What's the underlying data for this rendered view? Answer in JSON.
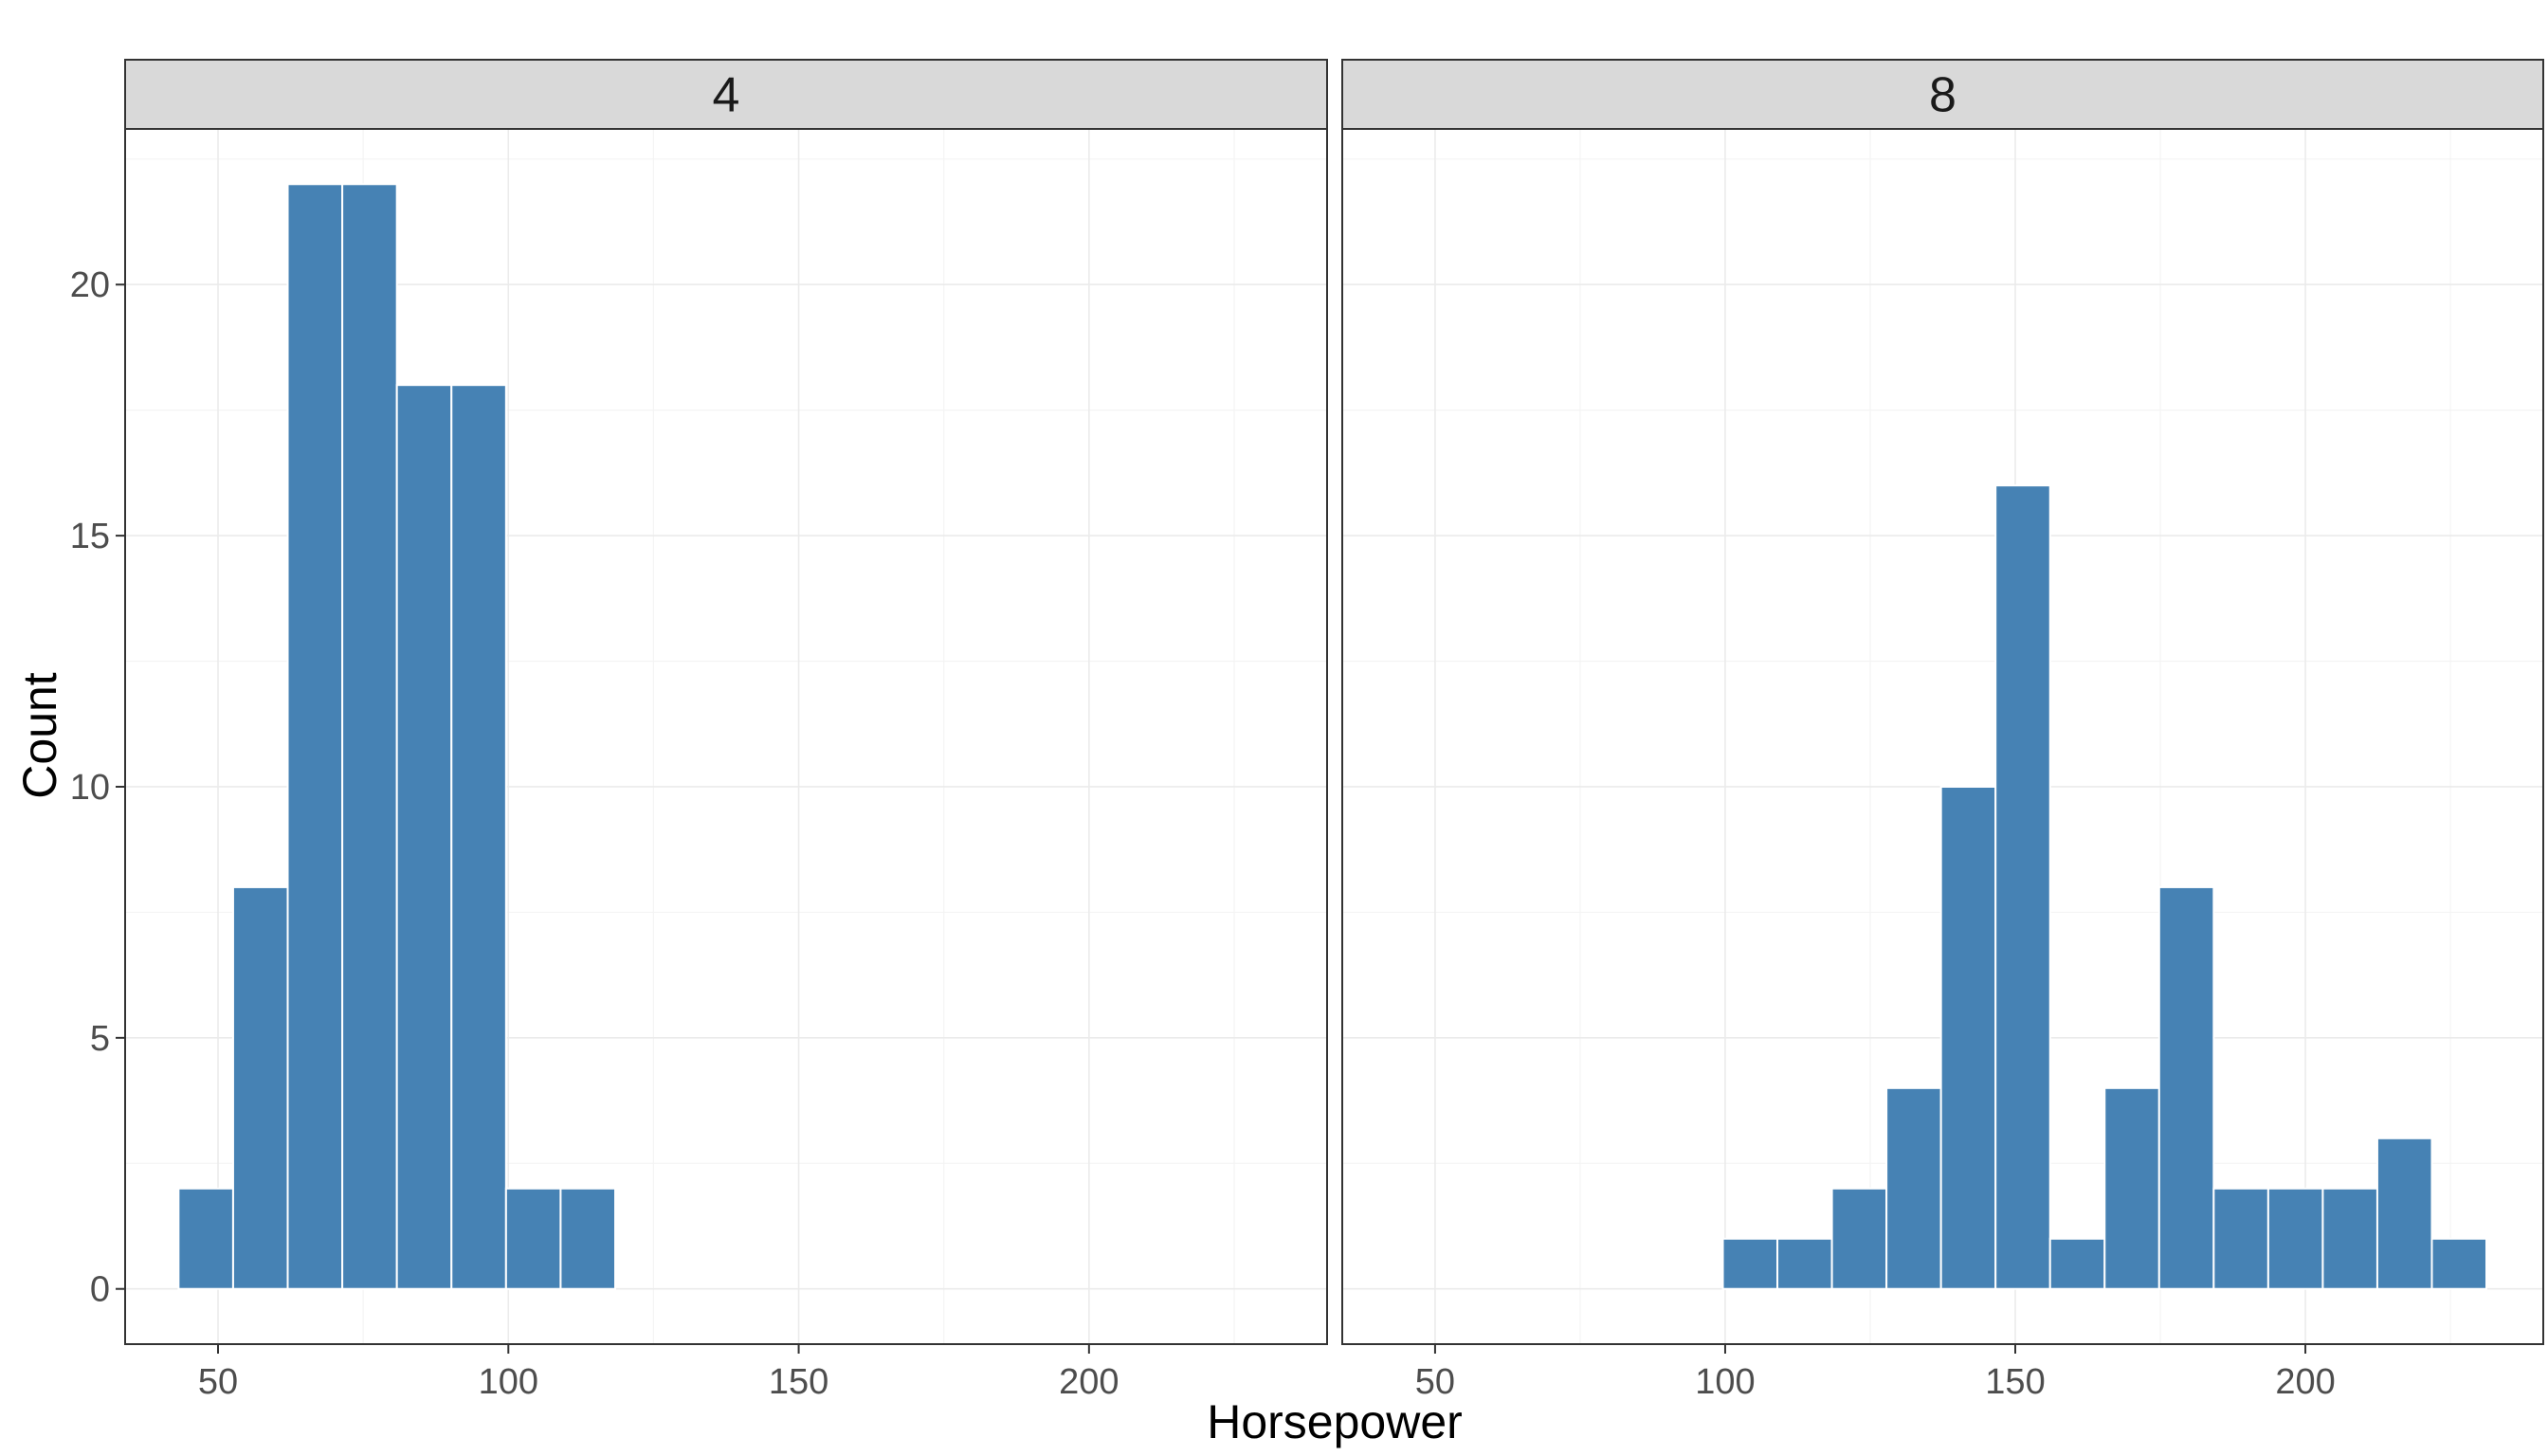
{
  "chart_data": {
    "type": "bar",
    "subtype": "faceted-histogram",
    "xlabel": "Horsepower",
    "ylabel": "Count",
    "xlim": [
      34,
      241
    ],
    "ylim": [
      -1.1,
      23.1
    ],
    "x_ticks": [
      50,
      100,
      150,
      200
    ],
    "y_ticks": [
      0,
      5,
      10,
      15,
      20
    ],
    "bin_width": 9.4,
    "grid": true,
    "bar_color": "#4682b4",
    "facets": [
      {
        "label": "4",
        "bins": [
          {
            "x0": 43.2,
            "x1": 52.6,
            "count": 2
          },
          {
            "x0": 52.6,
            "x1": 62.0,
            "count": 8
          },
          {
            "x0": 62.0,
            "x1": 71.4,
            "count": 22
          },
          {
            "x0": 71.4,
            "x1": 80.8,
            "count": 22
          },
          {
            "x0": 80.8,
            "x1": 90.2,
            "count": 18
          },
          {
            "x0": 90.2,
            "x1": 99.6,
            "count": 18
          },
          {
            "x0": 99.6,
            "x1": 109.0,
            "count": 2
          },
          {
            "x0": 109.0,
            "x1": 118.4,
            "count": 2
          }
        ]
      },
      {
        "label": "8",
        "bins": [
          {
            "x0": 99.6,
            "x1": 109.0,
            "count": 1
          },
          {
            "x0": 109.0,
            "x1": 118.4,
            "count": 1
          },
          {
            "x0": 118.4,
            "x1": 127.8,
            "count": 2
          },
          {
            "x0": 127.8,
            "x1": 137.2,
            "count": 4
          },
          {
            "x0": 137.2,
            "x1": 146.6,
            "count": 10
          },
          {
            "x0": 146.6,
            "x1": 156.0,
            "count": 16
          },
          {
            "x0": 156.0,
            "x1": 165.4,
            "count": 1
          },
          {
            "x0": 165.4,
            "x1": 174.8,
            "count": 4
          },
          {
            "x0": 174.8,
            "x1": 184.2,
            "count": 8
          },
          {
            "x0": 184.2,
            "x1": 193.6,
            "count": 2
          },
          {
            "x0": 193.6,
            "x1": 203.0,
            "count": 2
          },
          {
            "x0": 203.0,
            "x1": 212.4,
            "count": 2
          },
          {
            "x0": 212.4,
            "x1": 221.8,
            "count": 3
          },
          {
            "x0": 221.8,
            "x1": 231.2,
            "count": 1
          }
        ]
      }
    ]
  }
}
